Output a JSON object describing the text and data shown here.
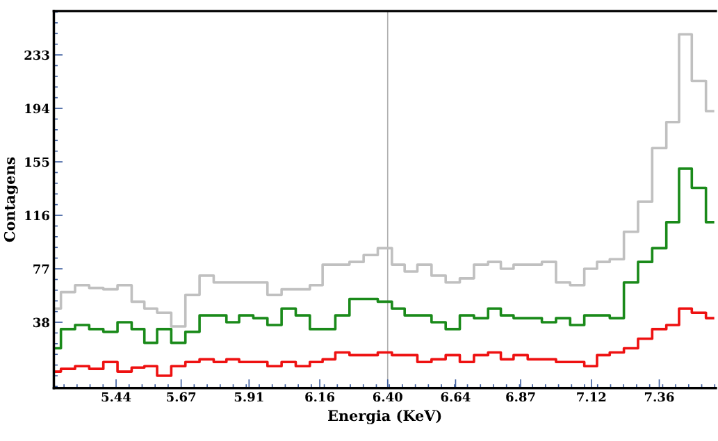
{
  "chart_data": {
    "type": "step",
    "xlabel": "Energia (KeV)",
    "ylabel": "Contagens",
    "x": [
      5.22,
      5.27,
      5.32,
      5.37,
      5.42,
      5.47,
      5.52,
      5.56,
      5.61,
      5.66,
      5.71,
      5.76,
      5.81,
      5.85,
      5.9,
      5.95,
      6.0,
      6.05,
      6.1,
      6.15,
      6.19,
      6.24,
      6.29,
      6.34,
      6.39,
      6.44,
      6.48,
      6.53,
      6.58,
      6.63,
      6.68,
      6.73,
      6.78,
      6.82,
      6.87,
      6.92,
      6.97,
      7.02,
      7.07,
      7.12,
      7.16,
      7.21,
      7.26,
      7.31,
      7.36,
      7.41,
      7.45,
      7.5,
      7.55
    ],
    "series": [
      {
        "color": "#c0c0c0",
        "values": [
          48,
          60,
          65,
          63,
          62,
          65,
          53,
          48,
          45,
          35,
          58,
          72,
          67,
          67,
          67,
          67,
          58,
          62,
          62,
          65,
          80,
          80,
          82,
          87,
          92,
          80,
          75,
          80,
          72,
          67,
          70,
          80,
          82,
          77,
          80,
          80,
          82,
          67,
          65,
          77,
          82,
          84,
          104,
          126,
          165,
          184,
          248,
          214,
          192
        ]
      },
      {
        "color": "#1a8a1a",
        "values": [
          19,
          33,
          36,
          33,
          31,
          38,
          33,
          23,
          33,
          23,
          31,
          43,
          43,
          38,
          43,
          41,
          36,
          48,
          43,
          33,
          33,
          43,
          55,
          55,
          53,
          48,
          43,
          43,
          38,
          33,
          43,
          41,
          48,
          43,
          41,
          41,
          38,
          41,
          36,
          43,
          43,
          41,
          67,
          82,
          92,
          111,
          150,
          136,
          111
        ]
      },
      {
        "color": "#ee1111",
        "values": [
          2,
          4,
          6,
          4,
          9,
          2,
          5,
          6,
          -1,
          6,
          9,
          11,
          9,
          11,
          9,
          9,
          6,
          9,
          6,
          9,
          11,
          16,
          14,
          14,
          16,
          14,
          14,
          9,
          11,
          14,
          9,
          14,
          16,
          11,
          14,
          11,
          11,
          9,
          9,
          6,
          14,
          16,
          19,
          26,
          33,
          36,
          48,
          45,
          41
        ]
      }
    ],
    "xlim": [
      5.22,
      7.56
    ],
    "ylim": [
      -10,
      265
    ],
    "xticks": [
      5.44,
      5.67,
      5.91,
      6.16,
      {
        "value": 6.4,
        "label": "6.40"
      },
      6.64,
      6.87,
      7.12,
      7.36
    ],
    "yticks": [
      38,
      77,
      116,
      155,
      194,
      233
    ],
    "ref_lines": [
      {
        "axis": "x",
        "value": 6.4,
        "color": "#b0b0b0"
      }
    ]
  }
}
